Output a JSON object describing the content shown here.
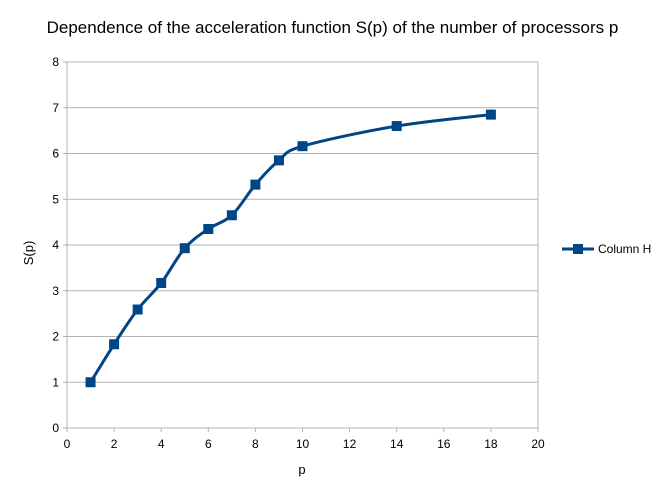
{
  "chart_data": {
    "type": "line",
    "title": "Dependence of the acceleration function S(p) of the number of processors p",
    "xlabel": "p",
    "ylabel": "S(p)",
    "xlim": [
      0,
      20
    ],
    "ylim": [
      0,
      8
    ],
    "x_ticks": [
      0,
      2,
      4,
      6,
      8,
      10,
      12,
      14,
      16,
      18,
      20
    ],
    "y_ticks": [
      0,
      1,
      2,
      3,
      4,
      5,
      6,
      7,
      8
    ],
    "grid": "horizontal",
    "legend_position": "right",
    "smooth": true,
    "series": [
      {
        "name": "Column H",
        "color": "#004586",
        "marker": "square",
        "x": [
          1,
          2,
          3,
          4,
          5,
          6,
          7,
          8,
          9,
          10,
          14,
          18
        ],
        "y": [
          1.0,
          1.83,
          2.59,
          3.17,
          3.93,
          4.35,
          4.65,
          5.32,
          5.85,
          6.16,
          6.6,
          6.85
        ]
      }
    ]
  }
}
